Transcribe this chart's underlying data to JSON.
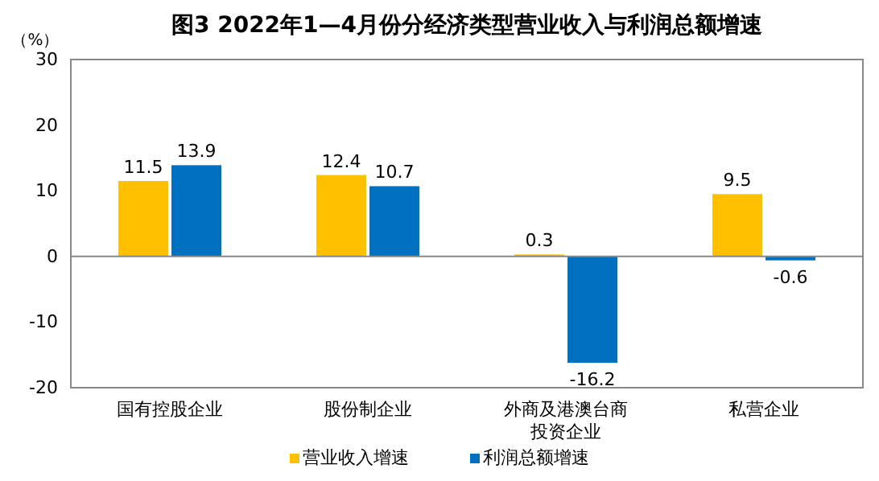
{
  "chart_data": {
    "type": "bar",
    "title": "图3  2022年1—4月份分经济类型营业收入与利润总额增速",
    "ylabel": "（%）",
    "categories": [
      "国有控股企业",
      "股份制企业",
      "外商及港澳台商投资企业",
      "私营企业"
    ],
    "series": [
      {
        "name": "营业收入增速",
        "color": "#ffc000",
        "values": [
          11.5,
          12.4,
          0.3,
          9.5
        ]
      },
      {
        "name": "利润总额增速",
        "color": "#0070c0",
        "values": [
          13.9,
          10.7,
          -16.2,
          -0.6
        ]
      }
    ],
    "ylim": [
      -20,
      30
    ],
    "yticks": [
      -20,
      -10,
      0,
      10,
      20,
      30
    ],
    "legend": "bottom",
    "data_labels": true
  }
}
